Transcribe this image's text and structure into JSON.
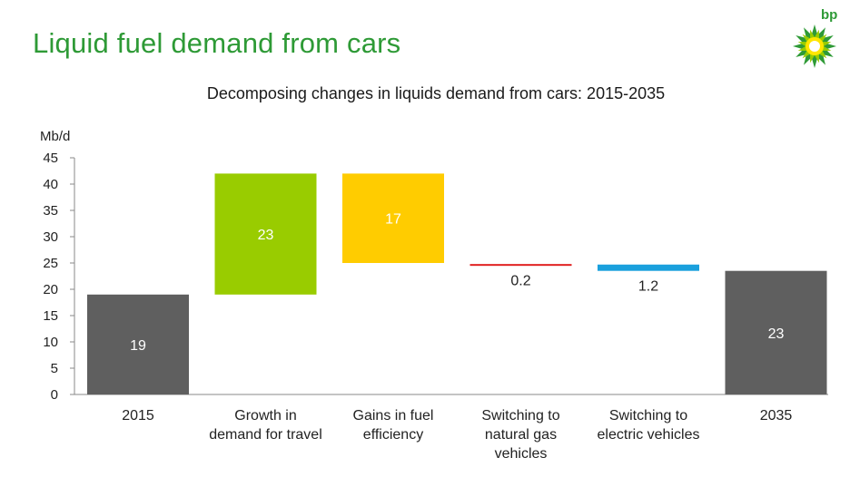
{
  "header": {
    "title": "Liquid fuel demand from cars",
    "logo_text": "bp"
  },
  "colors": {
    "title_green": "#2e9a36",
    "dark_grey": "#5f5f5f",
    "lime": "#99cc00",
    "yellow": "#ffcc00",
    "red": "#e02020",
    "blue": "#1aa0dd"
  },
  "chart_data": {
    "type": "bar",
    "subtype": "waterfall",
    "title": "Decomposing changes in liquids demand from cars: 2015-2035",
    "ylabel": "Mb/d",
    "xlabel": "",
    "ylim": [
      0,
      45
    ],
    "yticks": [
      "0",
      "5",
      "10",
      "15",
      "20",
      "25",
      "30",
      "35",
      "40",
      "45"
    ],
    "grid": false,
    "categories": [
      [
        "2015"
      ],
      [
        "Growth in",
        "demand for travel"
      ],
      [
        "Gains in fuel",
        "efficiency"
      ],
      [
        "Switching to",
        "natural gas",
        "vehicles"
      ],
      [
        "Switching to",
        "electric vehicles"
      ],
      [
        "2035"
      ]
    ],
    "bars": [
      {
        "base": 0,
        "top": 19,
        "label": "19",
        "color": "#5f5f5f",
        "label_color": "#ffffff",
        "label_pos": "inside"
      },
      {
        "base": 19,
        "top": 42,
        "label": "23",
        "color": "#99cc00",
        "label_color": "#ffffff",
        "label_pos": "inside"
      },
      {
        "base": 25,
        "top": 42,
        "label": "17",
        "color": "#ffcc00",
        "label_color": "#ffffff",
        "label_pos": "inside"
      },
      {
        "base": 24.6,
        "top": 24.8,
        "label": "0.2",
        "color": "#e02020",
        "label_color": "#222222",
        "label_pos": "below"
      },
      {
        "base": 23.5,
        "top": 24.7,
        "label": "1.2",
        "color": "#1aa0dd",
        "label_color": "#222222",
        "label_pos": "below"
      },
      {
        "base": 0,
        "top": 23.5,
        "label": "23",
        "color": "#5f5f5f",
        "label_color": "#ffffff",
        "label_pos": "inside"
      }
    ]
  }
}
